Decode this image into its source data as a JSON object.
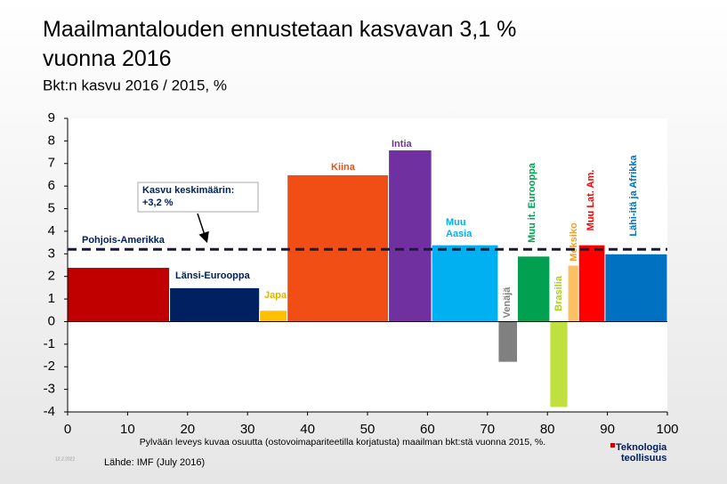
{
  "chart_data": {
    "type": "variwide_bar",
    "title": "Maailmantalouden ennustetaan kasvavan 3,1 % vuonna 2016",
    "subtitle": "Bkt:n kasvu 2016 / 2015, %",
    "categories": [
      "Pohjois-Amerikka",
      "Länsi-Eurooppa",
      "Japani",
      "Kiina",
      "Intia",
      "Muu Aasia",
      "Venäjä",
      "Muu it. Eurooppa",
      "Brasilia",
      "Meksiko",
      "Muu Lat. Am.",
      "Lähi-itä ja Afrikka"
    ],
    "x_edges": [
      0,
      17,
      32,
      36.6,
      53.5,
      60.7,
      71.8,
      75,
      80.4,
      83.4,
      85.2,
      89.6,
      100
    ],
    "values": [
      2.4,
      1.5,
      0.5,
      6.5,
      7.6,
      3.4,
      -1.8,
      2.9,
      -3.8,
      2.5,
      3.4,
      3.0
    ],
    "colors": [
      "#c00000",
      "#002060",
      "#ffc000",
      "#f04e14",
      "#7030a0",
      "#00b0f0",
      "#808080",
      "#00a050",
      "#c0e040",
      "#ffc060",
      "#ff0000",
      "#0070c0"
    ],
    "average": 3.2,
    "annotation": [
      "Kasvu keskimäärin:",
      "+3,2 %"
    ],
    "xlim": [
      0,
      100
    ],
    "xticks": [
      0,
      10,
      20,
      30,
      40,
      50,
      60,
      70,
      80,
      90,
      100
    ],
    "ylim": [
      -4,
      9
    ],
    "yticks": [
      -4,
      -3,
      -2,
      -1,
      0,
      1,
      2,
      3,
      4,
      5,
      6,
      7,
      8,
      9
    ],
    "footnote": "Pylvään leveys kuvaa osuutta (ostovoimapariteetilla korjatusta) maailman bkt:stä vuonna 2015, %.",
    "source": "Lähde: IMF (July 2016)",
    "date": "12.2.2022",
    "logo": [
      "Teknologia",
      "teollisuus"
    ]
  }
}
